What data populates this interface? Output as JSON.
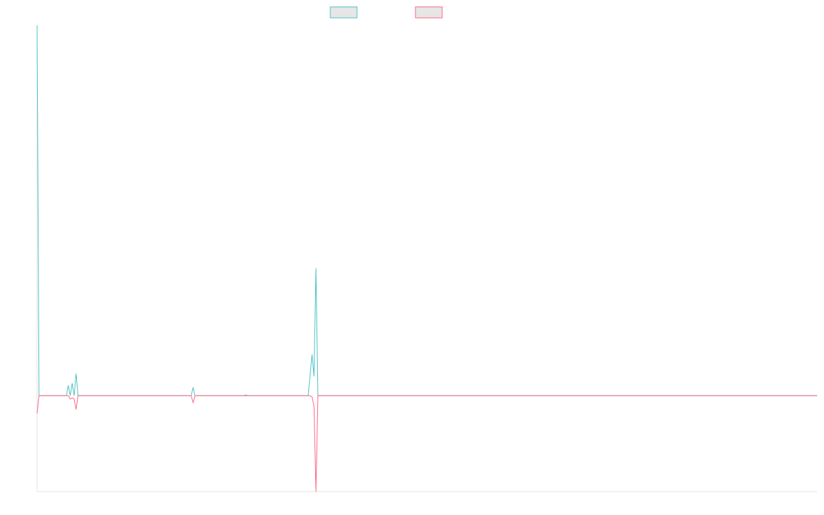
{
  "chart_data": {
    "type": "line",
    "xlim": [
      0,
      400
    ],
    "ylim": [
      -140,
      540
    ],
    "series": [
      {
        "color": "#4bc0c0",
        "x": [
          0,
          1,
          15,
          16,
          17,
          18,
          19,
          20,
          21,
          79,
          80,
          81,
          106,
          107,
          108,
          139,
          141,
          142,
          143,
          144,
          400
        ],
        "values": [
          540,
          0,
          0,
          15,
          0,
          18,
          0,
          32,
          0,
          0,
          12,
          0,
          0,
          1,
          0,
          0,
          60,
          28,
          186,
          0,
          0
        ]
      },
      {
        "color": "#ff6384",
        "x": [
          0,
          1,
          15,
          16,
          17,
          18,
          19,
          20,
          21,
          79,
          80,
          81,
          140,
          141,
          142,
          143,
          144,
          400
        ],
        "values": [
          -26,
          0,
          0,
          0,
          -5,
          -3,
          -5,
          -20,
          0,
          0,
          -10,
          0,
          0,
          -2,
          -15,
          -140,
          0,
          0
        ]
      }
    ]
  }
}
